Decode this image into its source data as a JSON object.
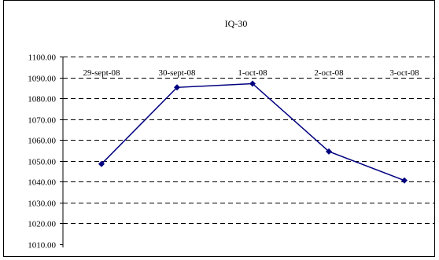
{
  "chart_data": {
    "type": "line",
    "title": "IQ-30",
    "categories": [
      "29-sept-08",
      "30-sept-08",
      "1-oct-08",
      "2-oct-08",
      "3-oct-08"
    ],
    "series": [
      {
        "values": [
          1048.5,
          1085.2,
          1087.0,
          1054.5,
          1040.6
        ]
      }
    ],
    "ylim": [
      1010,
      1100
    ],
    "yticks": [
      "1010.00",
      "1020.00",
      "1030.00",
      "1040.00",
      "1050.00",
      "1060.00",
      "1070.00",
      "1080.00",
      "1090.00",
      "1100.00"
    ],
    "grid": "dashed horizontal",
    "line_color": "#000080",
    "marker_color": "#000080",
    "category_labels_position": "top"
  }
}
